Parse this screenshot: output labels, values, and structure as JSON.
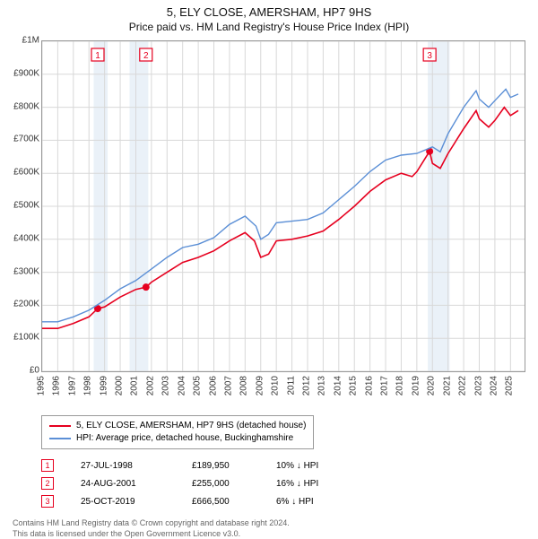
{
  "title": "5, ELY CLOSE, AMERSHAM, HP7 9HS",
  "subtitle": "Price paid vs. HM Land Registry's House Price Index (HPI)",
  "chart": {
    "type": "line",
    "background_color": "#ffffff",
    "border_color": "#999999",
    "grid_color": "#d8d8d8",
    "band_color": "#eaf1f8",
    "xlim": [
      1995,
      2025.9
    ],
    "ylim": [
      0,
      1000000
    ],
    "ytick_step": 100000,
    "yticks": [
      "£0",
      "£100K",
      "£200K",
      "£300K",
      "£400K",
      "£500K",
      "£600K",
      "£700K",
      "£800K",
      "£900K",
      "£1M"
    ],
    "xticks": [
      1995,
      1996,
      1997,
      1998,
      1999,
      2000,
      2001,
      2002,
      2003,
      2004,
      2005,
      2006,
      2007,
      2008,
      2009,
      2010,
      2011,
      2012,
      2013,
      2014,
      2015,
      2016,
      2017,
      2018,
      2019,
      2020,
      2021,
      2022,
      2023,
      2024,
      2025
    ],
    "bands": [
      {
        "from": 1998.3,
        "to": 1999.2
      },
      {
        "from": 2000.6,
        "to": 2001.8
      },
      {
        "from": 2019.7,
        "to": 2021.1
      }
    ],
    "series": [
      {
        "id": "property",
        "label": "5, ELY CLOSE, AMERSHAM, HP7 9HS (detached house)",
        "color": "#e6001f",
        "line_width": 1.6,
        "points": [
          [
            1995.0,
            130000
          ],
          [
            1996.0,
            130000
          ],
          [
            1997.0,
            145000
          ],
          [
            1998.0,
            165000
          ],
          [
            1998.56,
            189950
          ],
          [
            1999.0,
            195000
          ],
          [
            2000.0,
            225000
          ],
          [
            2001.0,
            248000
          ],
          [
            2001.65,
            255000
          ],
          [
            2002.0,
            270000
          ],
          [
            2003.0,
            300000
          ],
          [
            2004.0,
            330000
          ],
          [
            2005.0,
            345000
          ],
          [
            2006.0,
            365000
          ],
          [
            2007.0,
            395000
          ],
          [
            2008.0,
            420000
          ],
          [
            2008.6,
            395000
          ],
          [
            2009.0,
            345000
          ],
          [
            2009.5,
            355000
          ],
          [
            2010.0,
            395000
          ],
          [
            2011.0,
            400000
          ],
          [
            2012.0,
            410000
          ],
          [
            2013.0,
            425000
          ],
          [
            2014.0,
            460000
          ],
          [
            2015.0,
            500000
          ],
          [
            2016.0,
            545000
          ],
          [
            2017.0,
            580000
          ],
          [
            2018.0,
            600000
          ],
          [
            2018.7,
            590000
          ],
          [
            2019.0,
            605000
          ],
          [
            2019.82,
            666500
          ],
          [
            2020.0,
            630000
          ],
          [
            2020.5,
            615000
          ],
          [
            2021.0,
            660000
          ],
          [
            2022.0,
            735000
          ],
          [
            2022.8,
            790000
          ],
          [
            2023.0,
            765000
          ],
          [
            2023.6,
            740000
          ],
          [
            2024.0,
            760000
          ],
          [
            2024.6,
            800000
          ],
          [
            2025.0,
            775000
          ],
          [
            2025.5,
            790000
          ]
        ],
        "markers": [
          {
            "n": 1,
            "x": 1998.56,
            "y": 189950
          },
          {
            "n": 2,
            "x": 2001.65,
            "y": 255000
          },
          {
            "n": 3,
            "x": 2019.82,
            "y": 666500
          }
        ]
      },
      {
        "id": "hpi",
        "label": "HPI: Average price, detached house, Buckinghamshire",
        "color": "#5b8fd6",
        "line_width": 1.4,
        "points": [
          [
            1995.0,
            150000
          ],
          [
            1996.0,
            150000
          ],
          [
            1997.0,
            165000
          ],
          [
            1998.0,
            185000
          ],
          [
            1999.0,
            215000
          ],
          [
            2000.0,
            250000
          ],
          [
            2001.0,
            275000
          ],
          [
            2002.0,
            310000
          ],
          [
            2003.0,
            345000
          ],
          [
            2004.0,
            375000
          ],
          [
            2005.0,
            385000
          ],
          [
            2006.0,
            405000
          ],
          [
            2007.0,
            445000
          ],
          [
            2008.0,
            470000
          ],
          [
            2008.7,
            440000
          ],
          [
            2009.0,
            400000
          ],
          [
            2009.5,
            415000
          ],
          [
            2010.0,
            450000
          ],
          [
            2011.0,
            455000
          ],
          [
            2012.0,
            460000
          ],
          [
            2013.0,
            480000
          ],
          [
            2014.0,
            520000
          ],
          [
            2015.0,
            560000
          ],
          [
            2016.0,
            605000
          ],
          [
            2017.0,
            640000
          ],
          [
            2018.0,
            655000
          ],
          [
            2019.0,
            660000
          ],
          [
            2020.0,
            680000
          ],
          [
            2020.5,
            665000
          ],
          [
            2021.0,
            720000
          ],
          [
            2022.0,
            800000
          ],
          [
            2022.8,
            850000
          ],
          [
            2023.0,
            825000
          ],
          [
            2023.6,
            800000
          ],
          [
            2024.0,
            820000
          ],
          [
            2024.7,
            855000
          ],
          [
            2025.0,
            830000
          ],
          [
            2025.5,
            840000
          ]
        ]
      }
    ],
    "flag_labels": [
      {
        "n": 1,
        "x": 1998.56,
        "color": "#e6001f"
      },
      {
        "n": 2,
        "x": 2001.65,
        "color": "#e6001f"
      },
      {
        "n": 3,
        "x": 2019.82,
        "color": "#e6001f"
      }
    ]
  },
  "legend": {
    "items": [
      {
        "color": "#e6001f",
        "label": "5, ELY CLOSE, AMERSHAM, HP7 9HS (detached house)"
      },
      {
        "color": "#5b8fd6",
        "label": "HPI: Average price, detached house, Buckinghamshire"
      }
    ]
  },
  "transactions": [
    {
      "n": "1",
      "color": "#e6001f",
      "date": "27-JUL-1998",
      "price": "£189,950",
      "diff": "10% ↓ HPI"
    },
    {
      "n": "2",
      "color": "#e6001f",
      "date": "24-AUG-2001",
      "price": "£255,000",
      "diff": "16% ↓ HPI"
    },
    {
      "n": "3",
      "color": "#e6001f",
      "date": "25-OCT-2019",
      "price": "£666,500",
      "diff": "6% ↓ HPI"
    }
  ],
  "footer": {
    "line1": "Contains HM Land Registry data © Crown copyright and database right 2024.",
    "line2": "This data is licensed under the Open Government Licence v3.0."
  }
}
